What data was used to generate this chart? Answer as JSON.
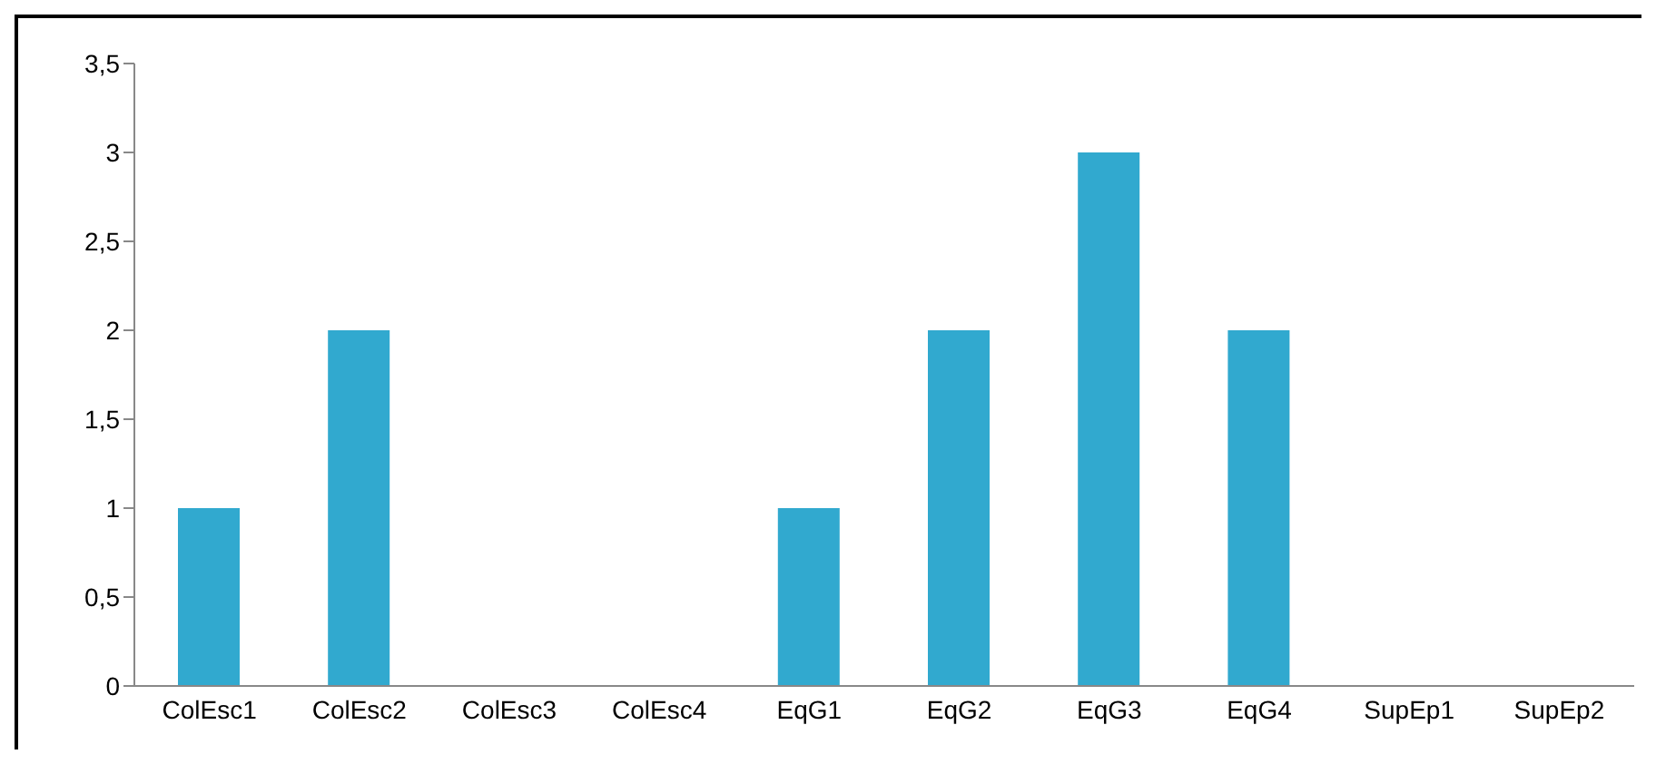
{
  "chart_data": {
    "type": "bar",
    "categories": [
      "ColEsc1",
      "ColEsc2",
      "ColEsc3",
      "ColEsc4",
      "EqG1",
      "EqG2",
      "EqG3",
      "EqG4",
      "SupEp1",
      "SupEp2"
    ],
    "values": [
      1,
      2,
      0,
      0,
      1,
      2,
      3,
      2,
      0,
      0
    ],
    "color": "#31a9cf",
    "ylim": [
      0,
      3.5
    ],
    "yticks": [
      0,
      {
        "value": 0.5,
        "label": "0,5"
      },
      1,
      {
        "value": 1.5,
        "label": "1,5"
      },
      2,
      {
        "value": 2.5,
        "label": "2,5"
      },
      3,
      {
        "value": 3.5,
        "label": "3,5"
      }
    ],
    "grid": false,
    "legend": false
  }
}
